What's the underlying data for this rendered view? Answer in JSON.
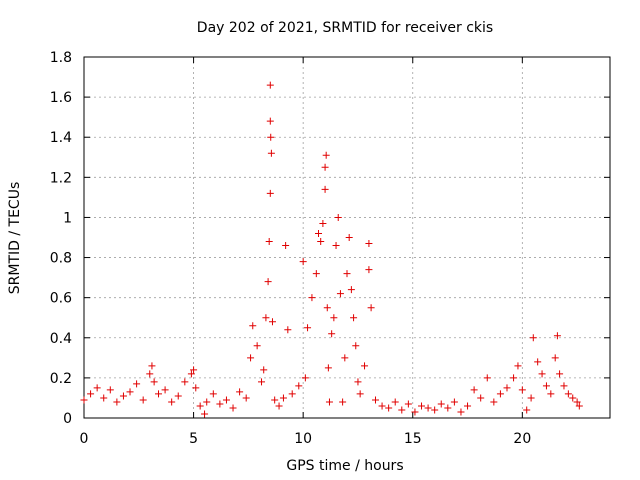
{
  "chart_data": {
    "type": "scatter",
    "title": "Day 202 of 2021, SRMTID for receiver ckis",
    "xlabel": "GPS time / hours",
    "ylabel": "SRMTID / TECUs",
    "xlim": [
      0,
      24
    ],
    "ylim": [
      0,
      1.8
    ],
    "xticks": [
      0,
      5,
      10,
      15,
      20
    ],
    "xtick_labels": [
      "0",
      "5",
      "10",
      "15",
      "20"
    ],
    "yticks": [
      0,
      0.2,
      0.4,
      0.6,
      0.8,
      1.0,
      1.2,
      1.4,
      1.6,
      1.8
    ],
    "ytick_labels": [
      "0",
      "0.2",
      "0.4",
      "0.6",
      "0.8",
      "1",
      "1.2",
      "1.4",
      "1.6",
      "1.8"
    ],
    "grid": true,
    "marker": "+",
    "marker_color": "#e00000",
    "series": [
      {
        "name": "SRMTID",
        "x": [
          0.0,
          0.3,
          0.6,
          0.9,
          1.2,
          1.5,
          1.8,
          2.1,
          2.4,
          2.7,
          3.0,
          3.1,
          3.2,
          3.4,
          3.7,
          4.0,
          4.3,
          4.6,
          4.9,
          5.0,
          5.1,
          5.3,
          5.5,
          5.6,
          5.9,
          6.2,
          6.5,
          6.8,
          7.1,
          7.4,
          7.6,
          7.7,
          7.9,
          8.1,
          8.2,
          8.3,
          8.4,
          8.45,
          8.5,
          8.5,
          8.5,
          8.52,
          8.55,
          8.6,
          8.7,
          8.9,
          9.1,
          9.2,
          9.3,
          9.5,
          9.8,
          10.0,
          10.1,
          10.2,
          10.4,
          10.6,
          10.7,
          10.8,
          10.9,
          11.0,
          11.0,
          11.05,
          11.1,
          11.15,
          11.2,
          11.3,
          11.4,
          11.5,
          11.6,
          11.7,
          11.8,
          11.9,
          12.0,
          12.1,
          12.2,
          12.3,
          12.4,
          12.5,
          12.6,
          12.8,
          13.0,
          13.0,
          13.1,
          13.3,
          13.6,
          13.9,
          14.2,
          14.5,
          14.8,
          15.1,
          15.4,
          15.7,
          16.0,
          16.3,
          16.6,
          16.9,
          17.2,
          17.5,
          17.8,
          18.1,
          18.4,
          18.7,
          19.0,
          19.3,
          19.6,
          19.8,
          20.0,
          20.2,
          20.4,
          20.5,
          20.7,
          20.9,
          21.1,
          21.3,
          21.5,
          21.6,
          21.7,
          21.9,
          22.1,
          22.3,
          22.5,
          22.6
        ],
        "y": [
          0.09,
          0.12,
          0.15,
          0.1,
          0.14,
          0.08,
          0.11,
          0.13,
          0.17,
          0.09,
          0.22,
          0.26,
          0.18,
          0.12,
          0.14,
          0.08,
          0.11,
          0.18,
          0.22,
          0.24,
          0.15,
          0.06,
          0.02,
          0.08,
          0.12,
          0.07,
          0.09,
          0.05,
          0.13,
          0.1,
          0.3,
          0.46,
          0.36,
          0.18,
          0.24,
          0.5,
          0.68,
          0.88,
          1.12,
          1.48,
          1.66,
          1.4,
          1.32,
          0.48,
          0.09,
          0.06,
          0.1,
          0.86,
          0.44,
          0.12,
          0.16,
          0.78,
          0.2,
          0.45,
          0.6,
          0.72,
          0.92,
          0.88,
          0.97,
          1.14,
          1.25,
          1.31,
          0.55,
          0.25,
          0.08,
          0.42,
          0.5,
          0.86,
          1.0,
          0.62,
          0.08,
          0.3,
          0.72,
          0.9,
          0.64,
          0.5,
          0.36,
          0.18,
          0.12,
          0.26,
          0.74,
          0.87,
          0.55,
          0.09,
          0.06,
          0.05,
          0.08,
          0.04,
          0.07,
          0.03,
          0.06,
          0.05,
          0.04,
          0.07,
          0.05,
          0.08,
          0.03,
          0.06,
          0.14,
          0.1,
          0.2,
          0.08,
          0.12,
          0.15,
          0.2,
          0.26,
          0.14,
          0.04,
          0.1,
          0.4,
          0.28,
          0.22,
          0.16,
          0.12,
          0.3,
          0.41,
          0.22,
          0.16,
          0.12,
          0.1,
          0.08,
          0.06
        ]
      }
    ]
  }
}
